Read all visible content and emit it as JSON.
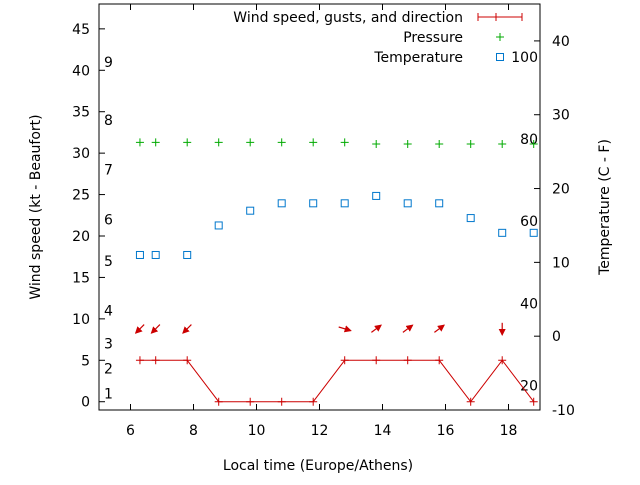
{
  "chart_data": {
    "type": "line",
    "xlabel": "Local time (Europe/Athens)",
    "ylabel": "Wind speed (kt - Beaufort)",
    "y2label": "Temperature (C - F)",
    "xlim": [
      5,
      19
    ],
    "ylim": [
      -1,
      48
    ],
    "y2lim": [
      -10,
      45
    ],
    "xticks": [
      "6",
      "8",
      "10",
      "12",
      "14",
      "16",
      "18"
    ],
    "yticks": [
      "0",
      "5",
      "10",
      "15",
      "20",
      "25",
      "30",
      "35",
      "40",
      "45"
    ],
    "y2ticks": [
      "-10",
      "0",
      "10",
      "20",
      "30",
      "40"
    ],
    "beaufort_labels": [
      {
        "text": "1",
        "kt": 1
      },
      {
        "text": "2",
        "kt": 4
      },
      {
        "text": "3",
        "kt": 7
      },
      {
        "text": "4",
        "kt": 11
      },
      {
        "text": "5",
        "kt": 17
      },
      {
        "text": "6",
        "kt": 22
      },
      {
        "text": "7",
        "kt": 28
      },
      {
        "text": "8",
        "kt": 34
      },
      {
        "text": "9",
        "kt": 41
      }
    ],
    "fahrenheit_labels": [
      {
        "text": "20",
        "c": -6.7
      },
      {
        "text": "40",
        "c": 4.4
      },
      {
        "text": "60",
        "c": 15.6
      },
      {
        "text": "80",
        "c": 26.7
      },
      {
        "text": "100",
        "c": 37.8
      }
    ],
    "legend_position": "top-right",
    "series": [
      {
        "name": "Wind speed, gusts, and direction",
        "color": "#cc0000",
        "axis": "left",
        "x": [
          6.3,
          6.8,
          7.8,
          8.8,
          9.8,
          10.8,
          11.8,
          12.8,
          13.8,
          14.8,
          15.8,
          16.8,
          17.8,
          18.8
        ],
        "values": [
          5,
          5,
          5,
          0,
          0,
          0,
          0,
          5,
          5,
          5,
          5,
          0,
          5,
          0
        ]
      },
      {
        "name": "Pressure",
        "color": "#00aa00",
        "axis": "left",
        "x": [
          6.3,
          6.8,
          7.8,
          8.8,
          9.8,
          10.8,
          11.8,
          12.8,
          13.8,
          14.8,
          15.8,
          16.8,
          17.8,
          18.8
        ],
        "values": [
          31.3,
          31.3,
          31.3,
          31.3,
          31.3,
          31.3,
          31.3,
          31.3,
          31.1,
          31.1,
          31.1,
          31.1,
          31.1,
          31.1
        ]
      },
      {
        "name": "Temperature",
        "color": "#0077cc",
        "axis": "right",
        "x": [
          6.3,
          6.8,
          7.8,
          8.8,
          9.8,
          10.8,
          11.8,
          12.8,
          13.8,
          14.8,
          15.8,
          16.8,
          17.8,
          18.8
        ],
        "values": [
          11,
          11,
          11,
          15,
          17,
          18,
          18,
          18,
          19,
          18,
          18,
          16,
          14,
          14
        ]
      }
    ],
    "wind_direction_arrows": [
      {
        "x": 6.3,
        "dir": "sw"
      },
      {
        "x": 6.8,
        "dir": "sw"
      },
      {
        "x": 7.8,
        "dir": "sw"
      },
      {
        "x": 12.8,
        "dir": "e"
      },
      {
        "x": 13.8,
        "dir": "ne"
      },
      {
        "x": 14.8,
        "dir": "ne"
      },
      {
        "x": 15.8,
        "dir": "ne"
      },
      {
        "x": 17.8,
        "dir": "s"
      }
    ]
  }
}
